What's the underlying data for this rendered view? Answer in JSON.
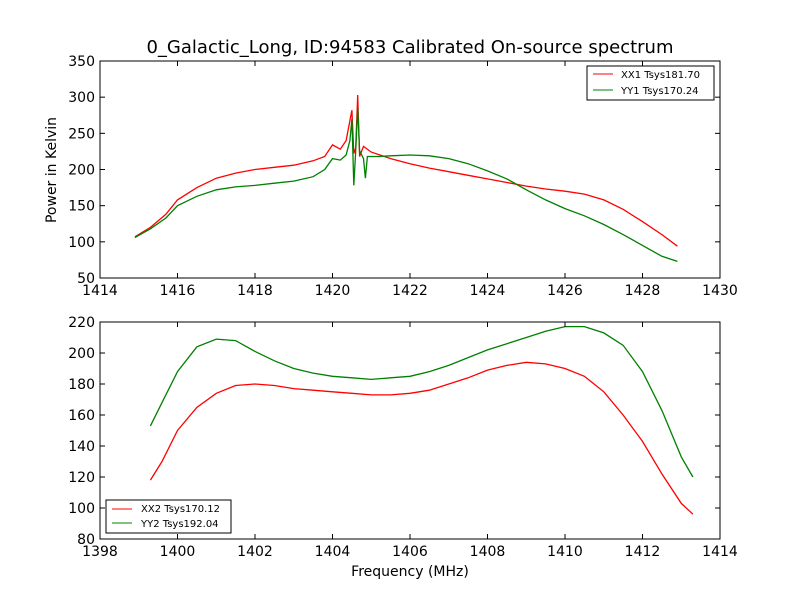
{
  "chart_data": [
    {
      "type": "line",
      "title": "0_Galactic_Long, ID:94583 Calibrated On-source spectrum",
      "xlabel": "",
      "ylabel": "Power in Kelvin",
      "xlim": [
        1414,
        1430
      ],
      "ylim": [
        50,
        350
      ],
      "xticks": [
        1414,
        1416,
        1418,
        1420,
        1422,
        1424,
        1426,
        1428,
        1430
      ],
      "yticks": [
        50,
        100,
        150,
        200,
        250,
        300,
        350
      ],
      "legend_position": "top-right",
      "series": [
        {
          "name": "XX1 Tsys181.70",
          "color": "#ff0000",
          "points": [
            [
              1414.9,
              107
            ],
            [
              1415.3,
              120
            ],
            [
              1415.7,
              138
            ],
            [
              1416.0,
              158
            ],
            [
              1416.5,
              175
            ],
            [
              1417.0,
              188
            ],
            [
              1417.5,
              195
            ],
            [
              1418.0,
              200
            ],
            [
              1418.5,
              203
            ],
            [
              1419.0,
              206
            ],
            [
              1419.5,
              212
            ],
            [
              1419.8,
              218
            ],
            [
              1420.0,
              234
            ],
            [
              1420.2,
              228
            ],
            [
              1420.35,
              240
            ],
            [
              1420.5,
              282
            ],
            [
              1420.55,
              222
            ],
            [
              1420.6,
              230
            ],
            [
              1420.65,
              303
            ],
            [
              1420.7,
              218
            ],
            [
              1420.8,
              232
            ],
            [
              1421.0,
              224
            ],
            [
              1421.5,
              215
            ],
            [
              1422.0,
              208
            ],
            [
              1422.5,
              202
            ],
            [
              1423.0,
              197
            ],
            [
              1423.5,
              192
            ],
            [
              1424.0,
              187
            ],
            [
              1424.5,
              182
            ],
            [
              1425.0,
              177
            ],
            [
              1425.5,
              173
            ],
            [
              1426.0,
              170
            ],
            [
              1426.5,
              166
            ],
            [
              1427.0,
              158
            ],
            [
              1427.5,
              145
            ],
            [
              1428.0,
              128
            ],
            [
              1428.5,
              110
            ],
            [
              1428.9,
              94
            ]
          ]
        },
        {
          "name": "YY1 Tsys170.24",
          "color": "#008000",
          "points": [
            [
              1414.9,
              106
            ],
            [
              1415.3,
              118
            ],
            [
              1415.7,
              133
            ],
            [
              1416.0,
              150
            ],
            [
              1416.5,
              163
            ],
            [
              1417.0,
              172
            ],
            [
              1417.5,
              176
            ],
            [
              1418.0,
              178
            ],
            [
              1418.5,
              181
            ],
            [
              1419.0,
              184
            ],
            [
              1419.5,
              190
            ],
            [
              1419.8,
              200
            ],
            [
              1420.0,
              215
            ],
            [
              1420.2,
              213
            ],
            [
              1420.35,
              220
            ],
            [
              1420.45,
              240
            ],
            [
              1420.5,
              270
            ],
            [
              1420.55,
              178
            ],
            [
              1420.6,
              225
            ],
            [
              1420.65,
              285
            ],
            [
              1420.7,
              226
            ],
            [
              1420.8,
              215
            ],
            [
              1420.85,
              188
            ],
            [
              1420.9,
              218
            ],
            [
              1421.2,
              218
            ],
            [
              1421.5,
              219
            ],
            [
              1422.0,
              220
            ],
            [
              1422.5,
              219
            ],
            [
              1423.0,
              215
            ],
            [
              1423.5,
              208
            ],
            [
              1424.0,
              198
            ],
            [
              1424.5,
              187
            ],
            [
              1425.0,
              172
            ],
            [
              1425.5,
              158
            ],
            [
              1426.0,
              146
            ],
            [
              1426.5,
              136
            ],
            [
              1427.0,
              124
            ],
            [
              1427.5,
              110
            ],
            [
              1428.0,
              95
            ],
            [
              1428.5,
              80
            ],
            [
              1428.9,
              73
            ]
          ]
        }
      ]
    },
    {
      "type": "line",
      "title": "",
      "xlabel": "Frequency (MHz)",
      "ylabel": "",
      "xlim": [
        1398,
        1414
      ],
      "ylim": [
        80,
        220
      ],
      "xticks": [
        1398,
        1400,
        1402,
        1404,
        1406,
        1408,
        1410,
        1412,
        1414
      ],
      "yticks": [
        80,
        100,
        120,
        140,
        160,
        180,
        200,
        220
      ],
      "legend_position": "bottom-left",
      "series": [
        {
          "name": "XX2 Tsys170.12",
          "color": "#ff0000",
          "points": [
            [
              1399.3,
              118
            ],
            [
              1399.6,
              130
            ],
            [
              1400.0,
              150
            ],
            [
              1400.5,
              165
            ],
            [
              1401.0,
              174
            ],
            [
              1401.5,
              179
            ],
            [
              1402.0,
              180
            ],
            [
              1402.5,
              179
            ],
            [
              1403.0,
              177
            ],
            [
              1403.5,
              176
            ],
            [
              1404.0,
              175
            ],
            [
              1404.5,
              174
            ],
            [
              1405.0,
              173
            ],
            [
              1405.5,
              173
            ],
            [
              1406.0,
              174
            ],
            [
              1406.5,
              176
            ],
            [
              1407.0,
              180
            ],
            [
              1407.5,
              184
            ],
            [
              1408.0,
              189
            ],
            [
              1408.5,
              192
            ],
            [
              1409.0,
              194
            ],
            [
              1409.5,
              193
            ],
            [
              1410.0,
              190
            ],
            [
              1410.5,
              185
            ],
            [
              1411.0,
              175
            ],
            [
              1411.5,
              160
            ],
            [
              1412.0,
              143
            ],
            [
              1412.5,
              122
            ],
            [
              1413.0,
              103
            ],
            [
              1413.3,
              96
            ]
          ]
        },
        {
          "name": "YY2 Tsys192.04",
          "color": "#008000",
          "points": [
            [
              1399.3,
              153
            ],
            [
              1399.6,
              168
            ],
            [
              1400.0,
              188
            ],
            [
              1400.5,
              204
            ],
            [
              1401.0,
              209
            ],
            [
              1401.5,
              208
            ],
            [
              1402.0,
              201
            ],
            [
              1402.5,
              195
            ],
            [
              1403.0,
              190
            ],
            [
              1403.5,
              187
            ],
            [
              1404.0,
              185
            ],
            [
              1404.5,
              184
            ],
            [
              1405.0,
              183
            ],
            [
              1405.5,
              184
            ],
            [
              1406.0,
              185
            ],
            [
              1406.5,
              188
            ],
            [
              1407.0,
              192
            ],
            [
              1407.5,
              197
            ],
            [
              1408.0,
              202
            ],
            [
              1408.5,
              206
            ],
            [
              1409.0,
              210
            ],
            [
              1409.5,
              214
            ],
            [
              1410.0,
              217
            ],
            [
              1410.5,
              217
            ],
            [
              1411.0,
              213
            ],
            [
              1411.5,
              205
            ],
            [
              1412.0,
              188
            ],
            [
              1412.5,
              163
            ],
            [
              1413.0,
              133
            ],
            [
              1413.3,
              120
            ]
          ]
        }
      ]
    }
  ]
}
